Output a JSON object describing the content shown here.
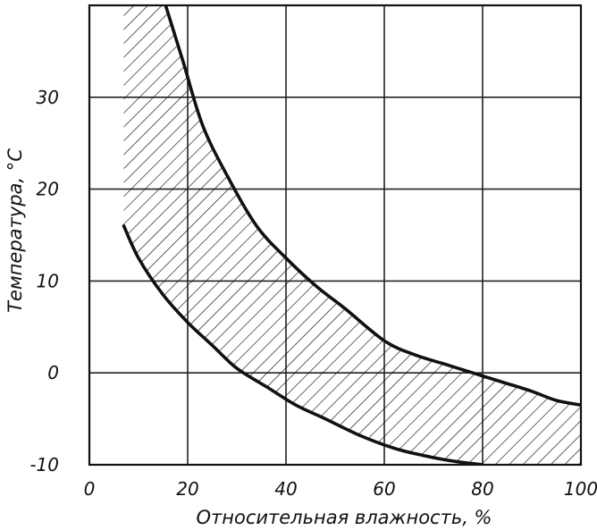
{
  "chart_data": {
    "type": "area",
    "xlabel": "Относительная влажность, %",
    "ylabel": "Температура, °С",
    "xlim": [
      0,
      100
    ],
    "ylim": [
      -10,
      40
    ],
    "x_ticks": [
      0,
      20,
      40,
      60,
      80,
      100
    ],
    "y_ticks": [
      -10,
      0,
      10,
      20,
      30
    ],
    "grid": true,
    "fill_pattern": "diagonal hatch",
    "series": [
      {
        "role": "upper_boundary",
        "x": [
          15.5,
          19,
          23,
          28,
          34,
          40,
          46,
          52,
          60,
          66,
          72,
          78,
          84,
          90,
          95,
          100
        ],
        "y": [
          40,
          34,
          27,
          21.5,
          16,
          12.5,
          9.5,
          7,
          3.5,
          2,
          1,
          0,
          -1,
          -2,
          -3,
          -3.5
        ]
      },
      {
        "role": "lower_boundary",
        "x": [
          7,
          10,
          15,
          20,
          25,
          30,
          36,
          42,
          48,
          55,
          62,
          68,
          74,
          80
        ],
        "y": [
          16,
          12.5,
          8.5,
          5.5,
          3,
          0.5,
          -1.5,
          -3.5,
          -5,
          -6.8,
          -8.2,
          -9,
          -9.6,
          -10
        ]
      }
    ],
    "hatched_region": {
      "left_edge_x": 7,
      "left_edge_y_range": [
        16,
        40
      ],
      "bottom_edge_y": -10,
      "bottom_edge_x_range": [
        80,
        100
      ]
    }
  }
}
